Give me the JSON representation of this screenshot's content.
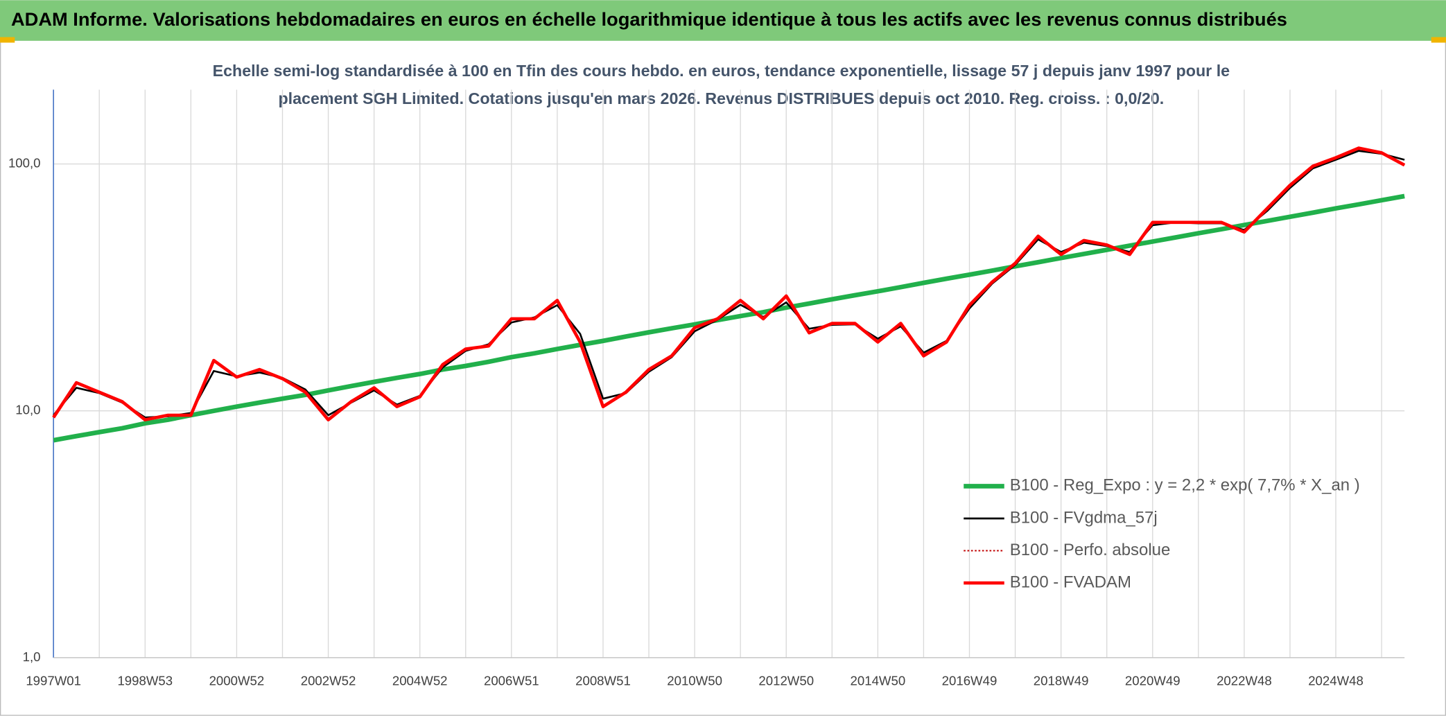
{
  "header": {
    "title": "ADAM Informe. Valorisations hebdomadaires en euros en échelle logarithmique identique à tous les actifs avec les revenus connus distribués"
  },
  "chart_data": {
    "type": "line",
    "subtitle": [
      "Echelle semi-log standardisée à 100 en Tfin des cours hebdo. en euros, tendance exponentielle, lissage 57 j depuis janv 1997 pour le",
      "placement SGH Limited. Cotations jusqu'en mars 2026. Revenus DISTRIBUES depuis oct 2010. Reg. croiss. : 0,0/20."
    ],
    "categories": [
      "1997W01",
      null,
      null,
      null,
      "1998W53",
      null,
      null,
      null,
      "2000W52",
      null,
      null,
      null,
      "2002W52",
      null,
      null,
      null,
      "2004W52",
      null,
      null,
      null,
      "2006W51",
      null,
      null,
      null,
      "2008W51",
      null,
      null,
      null,
      "2010W50",
      null,
      null,
      null,
      "2012W50",
      null,
      null,
      null,
      "2014W50",
      null,
      null,
      null,
      "2016W49",
      null,
      null,
      null,
      "2018W49",
      null,
      null,
      null,
      "2020W49",
      null,
      null,
      null,
      "2022W48",
      null,
      null,
      null,
      "2024W48",
      null,
      null,
      null
    ],
    "series": [
      {
        "name": "B100 - Reg_Expo : y = 2,2 * exp( 7,7% *  X_an )",
        "color": "#21b04b",
        "style": "solid",
        "values": [
          7.6,
          7.9,
          8.2,
          8.5,
          8.9,
          9.2,
          9.6,
          10.0,
          10.4,
          10.8,
          11.2,
          11.6,
          12.1,
          12.6,
          13.1,
          13.6,
          14.1,
          14.7,
          15.2,
          15.8,
          16.5,
          17.1,
          17.8,
          18.5,
          19.2,
          20.0,
          20.8,
          21.6,
          22.4,
          23.3,
          24.2,
          25.1,
          26.2,
          27.2,
          28.3,
          29.4,
          30.5,
          31.7,
          33.0,
          34.3,
          35.6,
          37.0,
          38.5,
          40.0,
          41.6,
          43.2,
          44.9,
          46.7,
          48.5,
          50.4,
          52.4,
          54.4,
          56.6,
          58.8,
          61.1,
          63.5,
          66.1,
          68.6,
          71.3,
          74.1
        ]
      },
      {
        "name": "B100 - FVgdma_57j",
        "color": "#000000",
        "style": "solid",
        "values": [
          9.6,
          12.4,
          11.8,
          10.8,
          9.4,
          9.5,
          9.8,
          14.5,
          13.8,
          14.3,
          13.6,
          12.2,
          9.6,
          10.8,
          12.1,
          10.6,
          11.5,
          15,
          17.5,
          18.6,
          22.8,
          23.9,
          26.8,
          20.5,
          11.2,
          11.8,
          14.4,
          16.5,
          21,
          23.4,
          26.9,
          24,
          27.5,
          21.5,
          22.3,
          22.4,
          19.6,
          22,
          17.2,
          19.2,
          26,
          32.8,
          39,
          49.5,
          44,
          48,
          46.5,
          44,
          56.5,
          58,
          57.5,
          57.5,
          54,
          64.5,
          80,
          96,
          104,
          113,
          110,
          104
        ]
      },
      {
        "name": "B100 - Perfo. absolue",
        "color": "#c00000",
        "style": "dotted",
        "values": [
          9.4,
          13,
          11.9,
          10.9,
          9.2,
          9.6,
          9.6,
          16,
          13.7,
          14.7,
          13.5,
          11.9,
          9.2,
          10.9,
          12.4,
          10.4,
          11.4,
          15.4,
          17.8,
          18.3,
          23.6,
          23.6,
          28,
          19,
          10.4,
          11.9,
          14.7,
          16.7,
          21.7,
          23.6,
          28,
          23.6,
          29.2,
          20.7,
          22.6,
          22.6,
          19,
          22.6,
          16.7,
          19,
          26.8,
          33.3,
          39.6,
          51,
          43,
          49,
          47,
          43,
          58,
          58,
          58,
          58,
          53,
          66,
          82,
          98,
          106,
          116,
          111,
          99
        ]
      },
      {
        "name": "B100 - FVADAM",
        "color": "#ff0000",
        "style": "solid",
        "values": [
          9.4,
          13,
          11.9,
          10.9,
          9.2,
          9.6,
          9.6,
          16,
          13.7,
          14.7,
          13.5,
          11.9,
          9.2,
          10.9,
          12.4,
          10.4,
          11.4,
          15.4,
          17.8,
          18.3,
          23.6,
          23.6,
          28,
          19,
          10.4,
          11.9,
          14.7,
          16.7,
          21.7,
          23.6,
          28,
          23.6,
          29.2,
          20.7,
          22.6,
          22.6,
          19,
          22.6,
          16.7,
          19,
          26.8,
          33.3,
          39.6,
          51,
          43,
          49,
          47,
          43,
          58,
          58,
          58,
          58,
          53,
          66,
          82,
          98,
          106,
          116,
          111,
          99
        ]
      }
    ],
    "ylim": [
      1,
      200
    ],
    "log_scale": true,
    "yticks": [
      {
        "value": 1,
        "label": "1,0"
      },
      {
        "value": 10,
        "label": "10,0"
      },
      {
        "value": 100,
        "label": "100,0"
      }
    ],
    "grid": true,
    "legend": "lower right"
  }
}
